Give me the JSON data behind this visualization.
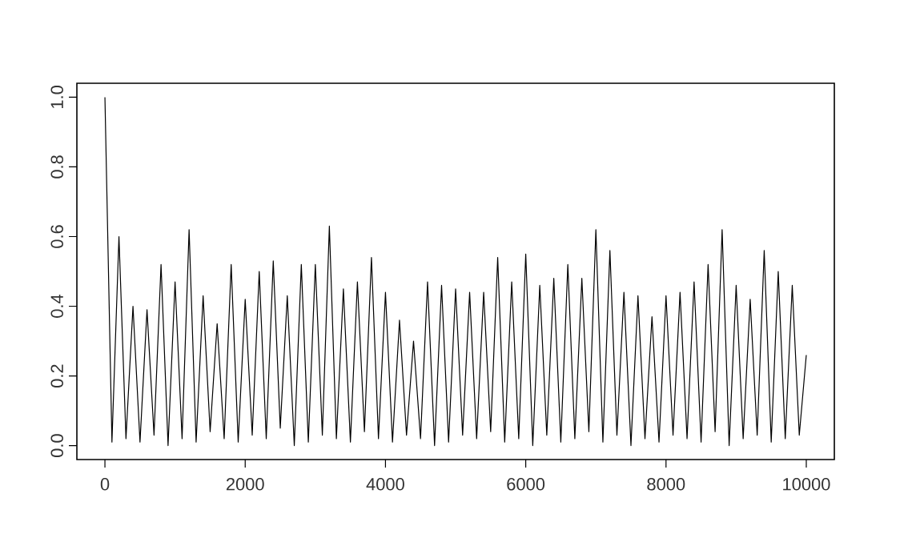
{
  "chart_data": {
    "type": "line",
    "color": "#000000",
    "x": [
      0,
      100,
      200,
      300,
      400,
      500,
      600,
      700,
      800,
      900,
      1000,
      1100,
      1200,
      1300,
      1400,
      1500,
      1600,
      1700,
      1800,
      1900,
      2000,
      2100,
      2200,
      2300,
      2400,
      2500,
      2600,
      2700,
      2800,
      2900,
      3000,
      3100,
      3200,
      3300,
      3400,
      3500,
      3600,
      3700,
      3800,
      3900,
      4000,
      4100,
      4200,
      4300,
      4400,
      4500,
      4600,
      4700,
      4800,
      4900,
      5000,
      5100,
      5200,
      5300,
      5400,
      5500,
      5600,
      5700,
      5800,
      5900,
      6000,
      6100,
      6200,
      6300,
      6400,
      6500,
      6600,
      6700,
      6800,
      6900,
      7000,
      7100,
      7200,
      7300,
      7400,
      7500,
      7600,
      7700,
      7800,
      7900,
      8000,
      8100,
      8200,
      8300,
      8400,
      8500,
      8600,
      8700,
      8800,
      8900,
      9000,
      9100,
      9200,
      9300,
      9400,
      9500,
      9600,
      9700,
      9800,
      9900,
      10000
    ],
    "values": [
      1.0,
      0.01,
      0.6,
      0.02,
      0.4,
      0.01,
      0.39,
      0.03,
      0.52,
      0.0,
      0.47,
      0.02,
      0.62,
      0.01,
      0.43,
      0.04,
      0.35,
      0.02,
      0.52,
      0.01,
      0.42,
      0.03,
      0.5,
      0.02,
      0.53,
      0.05,
      0.43,
      0.0,
      0.52,
      0.01,
      0.52,
      0.03,
      0.63,
      0.02,
      0.45,
      0.01,
      0.47,
      0.04,
      0.54,
      0.02,
      0.44,
      0.01,
      0.36,
      0.03,
      0.3,
      0.02,
      0.47,
      0.0,
      0.46,
      0.01,
      0.45,
      0.03,
      0.44,
      0.02,
      0.44,
      0.04,
      0.54,
      0.01,
      0.47,
      0.02,
      0.55,
      0.0,
      0.46,
      0.03,
      0.48,
      0.01,
      0.52,
      0.02,
      0.48,
      0.04,
      0.62,
      0.01,
      0.56,
      0.03,
      0.44,
      0.0,
      0.43,
      0.02,
      0.37,
      0.01,
      0.43,
      0.03,
      0.44,
      0.02,
      0.47,
      0.01,
      0.52,
      0.04,
      0.62,
      0.0,
      0.46,
      0.02,
      0.42,
      0.03,
      0.56,
      0.01,
      0.5,
      0.02,
      0.46,
      0.03,
      0.26
    ],
    "xlim": [
      -400,
      10400
    ],
    "ylim": [
      -0.04,
      1.04
    ],
    "xticks": [
      0,
      2000,
      4000,
      6000,
      8000,
      10000
    ],
    "yticks": [
      {
        "value": 0,
        "label": "0.0"
      },
      {
        "value": 0.2,
        "label": "0.2"
      },
      {
        "value": 0.4,
        "label": "0.4"
      },
      {
        "value": 0.6,
        "label": "0.6"
      },
      {
        "value": 0.8,
        "label": "0.8"
      },
      {
        "value": 1.0,
        "label": "1.0"
      }
    ],
    "grid": false,
    "marker": "none",
    "line_style": "solid"
  }
}
